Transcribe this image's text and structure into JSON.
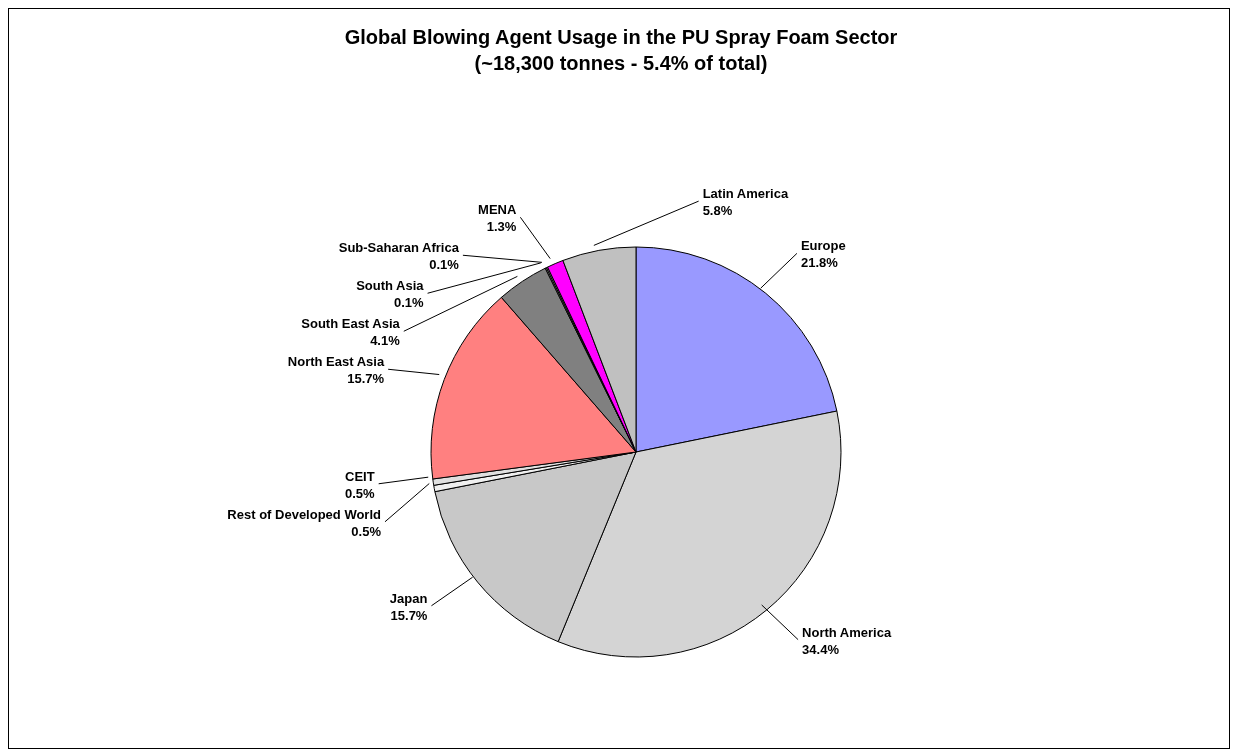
{
  "chart_data": {
    "type": "pie",
    "title": "Global Blowing Agent Usage in the PU Spray Foam Sector",
    "subtitle": "(~18,300 tonnes - 5.4% of total)",
    "categories": [
      "Europe",
      "North America",
      "Japan",
      "Rest of Developed World",
      "CEIT",
      "North East Asia",
      "South East Asia",
      "South Asia",
      "Sub-Saharan Africa",
      "MENA",
      "Latin America"
    ],
    "values": [
      21.8,
      34.4,
      15.7,
      0.5,
      0.5,
      15.7,
      4.1,
      0.1,
      0.1,
      1.3,
      5.8
    ],
    "value_labels": [
      "21.8%",
      "34.4%",
      "15.7%",
      "0.5%",
      "0.5%",
      "15.7%",
      "4.1%",
      "0.1%",
      "0.1%",
      "1.3%",
      "5.8%"
    ],
    "colors": [
      "#9999ff",
      "#d4d4d4",
      "#c8c8c8",
      "#f0f0f0",
      "#e0e0e0",
      "#ff8080",
      "#808080",
      "#a0a0a0",
      "#b8b8b8",
      "#ff00ff",
      "#c0c0c0"
    ]
  }
}
